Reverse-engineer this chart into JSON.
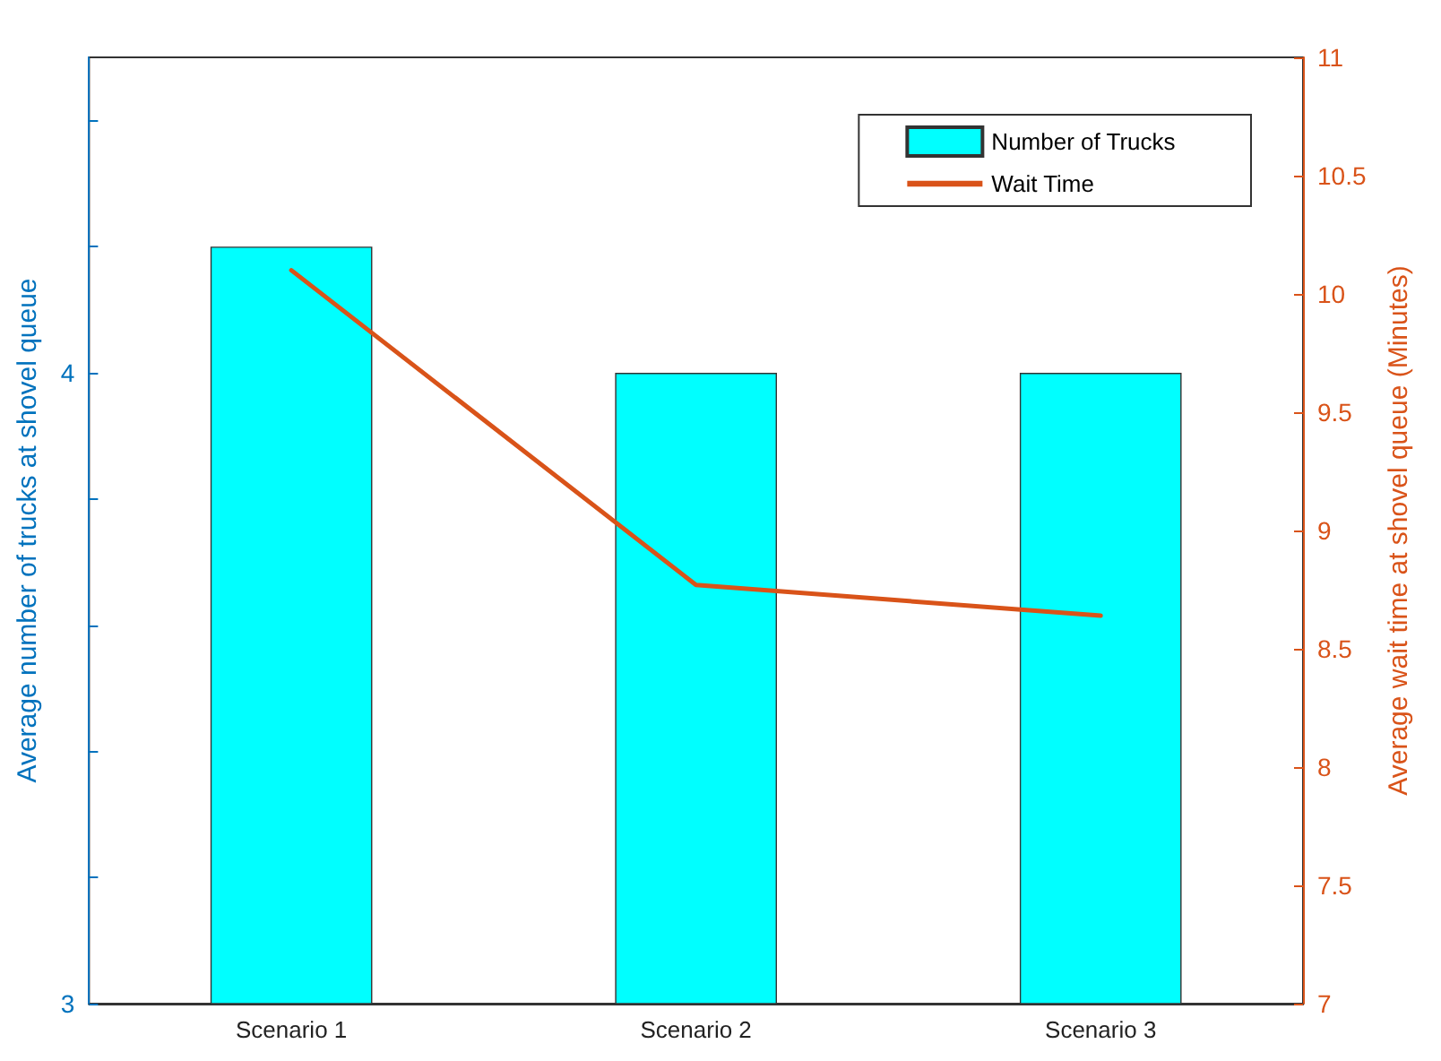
{
  "chart_data": {
    "type": "bar",
    "categories": [
      "Scenario 1",
      "Scenario 2",
      "Scenario 3"
    ],
    "ylabel": "Average number of trucks at shovel queue",
    "y2label": "Average wait time at shovel queue (Minutes)",
    "series": [
      {
        "name": "Number of Trucks",
        "color": "#00ffff",
        "values": [
          4.2,
          4,
          4
        ]
      },
      {
        "name": "Wait Time",
        "type": "line",
        "axis": "y2",
        "color": "#d95319",
        "values": [
          10.1,
          8.77,
          8.64
        ]
      }
    ],
    "ylim": [
      3,
      4.5
    ],
    "yticks": [
      3,
      {
        "value": 3.2,
        "label": null
      },
      {
        "value": 3.4,
        "label": null
      },
      {
        "value": 3.6,
        "label": null
      },
      {
        "value": 3.8,
        "label": null
      },
      4,
      {
        "value": 4.2,
        "label": null
      },
      {
        "value": 4.4,
        "label": null
      }
    ],
    "y2lim": [
      7,
      11
    ],
    "y2ticks": [
      7,
      7.5,
      8,
      8.5,
      9,
      9.5,
      10,
      10.5,
      11
    ],
    "legend": "top right",
    "grid": false,
    "marker": "none",
    "line_style": "solid"
  }
}
